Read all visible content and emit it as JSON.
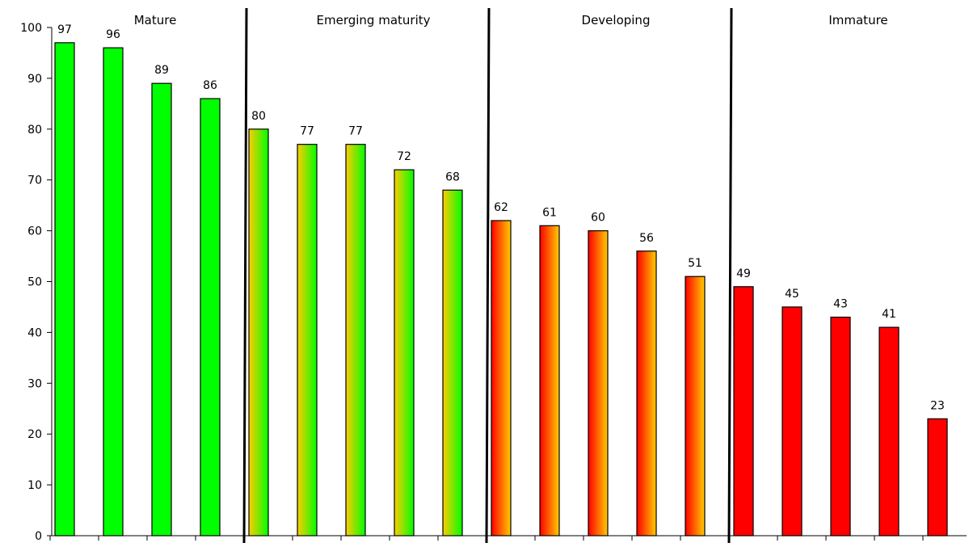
{
  "chart_data": {
    "type": "bar",
    "title": "",
    "xlabel": "",
    "ylabel": "",
    "ylim": [
      0,
      100
    ],
    "yticks": [
      0,
      10,
      20,
      30,
      40,
      50,
      60,
      70,
      80,
      90,
      100
    ],
    "grid": false,
    "legend": "none",
    "data_labels": true,
    "values": [
      97,
      96,
      89,
      86,
      80,
      77,
      77,
      72,
      68,
      62,
      61,
      60,
      56,
      51,
      49,
      45,
      43,
      41,
      23
    ],
    "groups": [
      {
        "label": "Mature",
        "count": 4,
        "fill": "solid-green"
      },
      {
        "label": "Emerging maturity",
        "count": 5,
        "fill": "gradient-yellow-green"
      },
      {
        "label": "Developing",
        "count": 5,
        "fill": "gradient-red-yellow"
      },
      {
        "label": "Immature",
        "count": 5,
        "fill": "solid-red"
      }
    ]
  },
  "colors": {
    "green": "#00ff00",
    "yellow": "#ffcc00",
    "red": "#ff0000",
    "axis": "#000000",
    "bar_border": "#000000",
    "background": "#ffffff"
  }
}
